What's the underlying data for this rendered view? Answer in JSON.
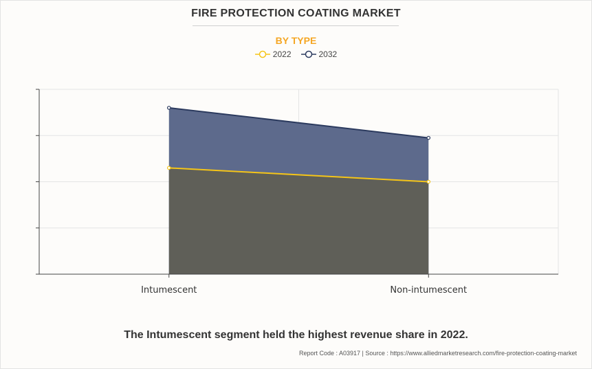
{
  "chart_data": {
    "type": "area",
    "title": "FIRE PROTECTION COATING MARKET",
    "subtitle": "BY TYPE",
    "categories": [
      "Intumescent",
      "Non-intumescent"
    ],
    "series": [
      {
        "name": "2022",
        "values": [
          2.3,
          2.0
        ],
        "color": "#f5c518",
        "fill": "#5f5f58"
      },
      {
        "name": "2032",
        "values": [
          3.6,
          2.95
        ],
        "color": "#2b3a5e",
        "fill": "#5d6a8c"
      }
    ],
    "ylim": [
      0,
      4
    ],
    "y_ticks": [
      0,
      1,
      2,
      3,
      4
    ],
    "show_y_tick_labels": false,
    "grid": true,
    "legend_position": "top-center"
  },
  "footnote": "The Intumescent segment held the highest revenue share in 2022.",
  "source_line": "Report Code : A03917  |  Source : https://www.alliedmarketresearch.com/fire-protection-coating-market"
}
